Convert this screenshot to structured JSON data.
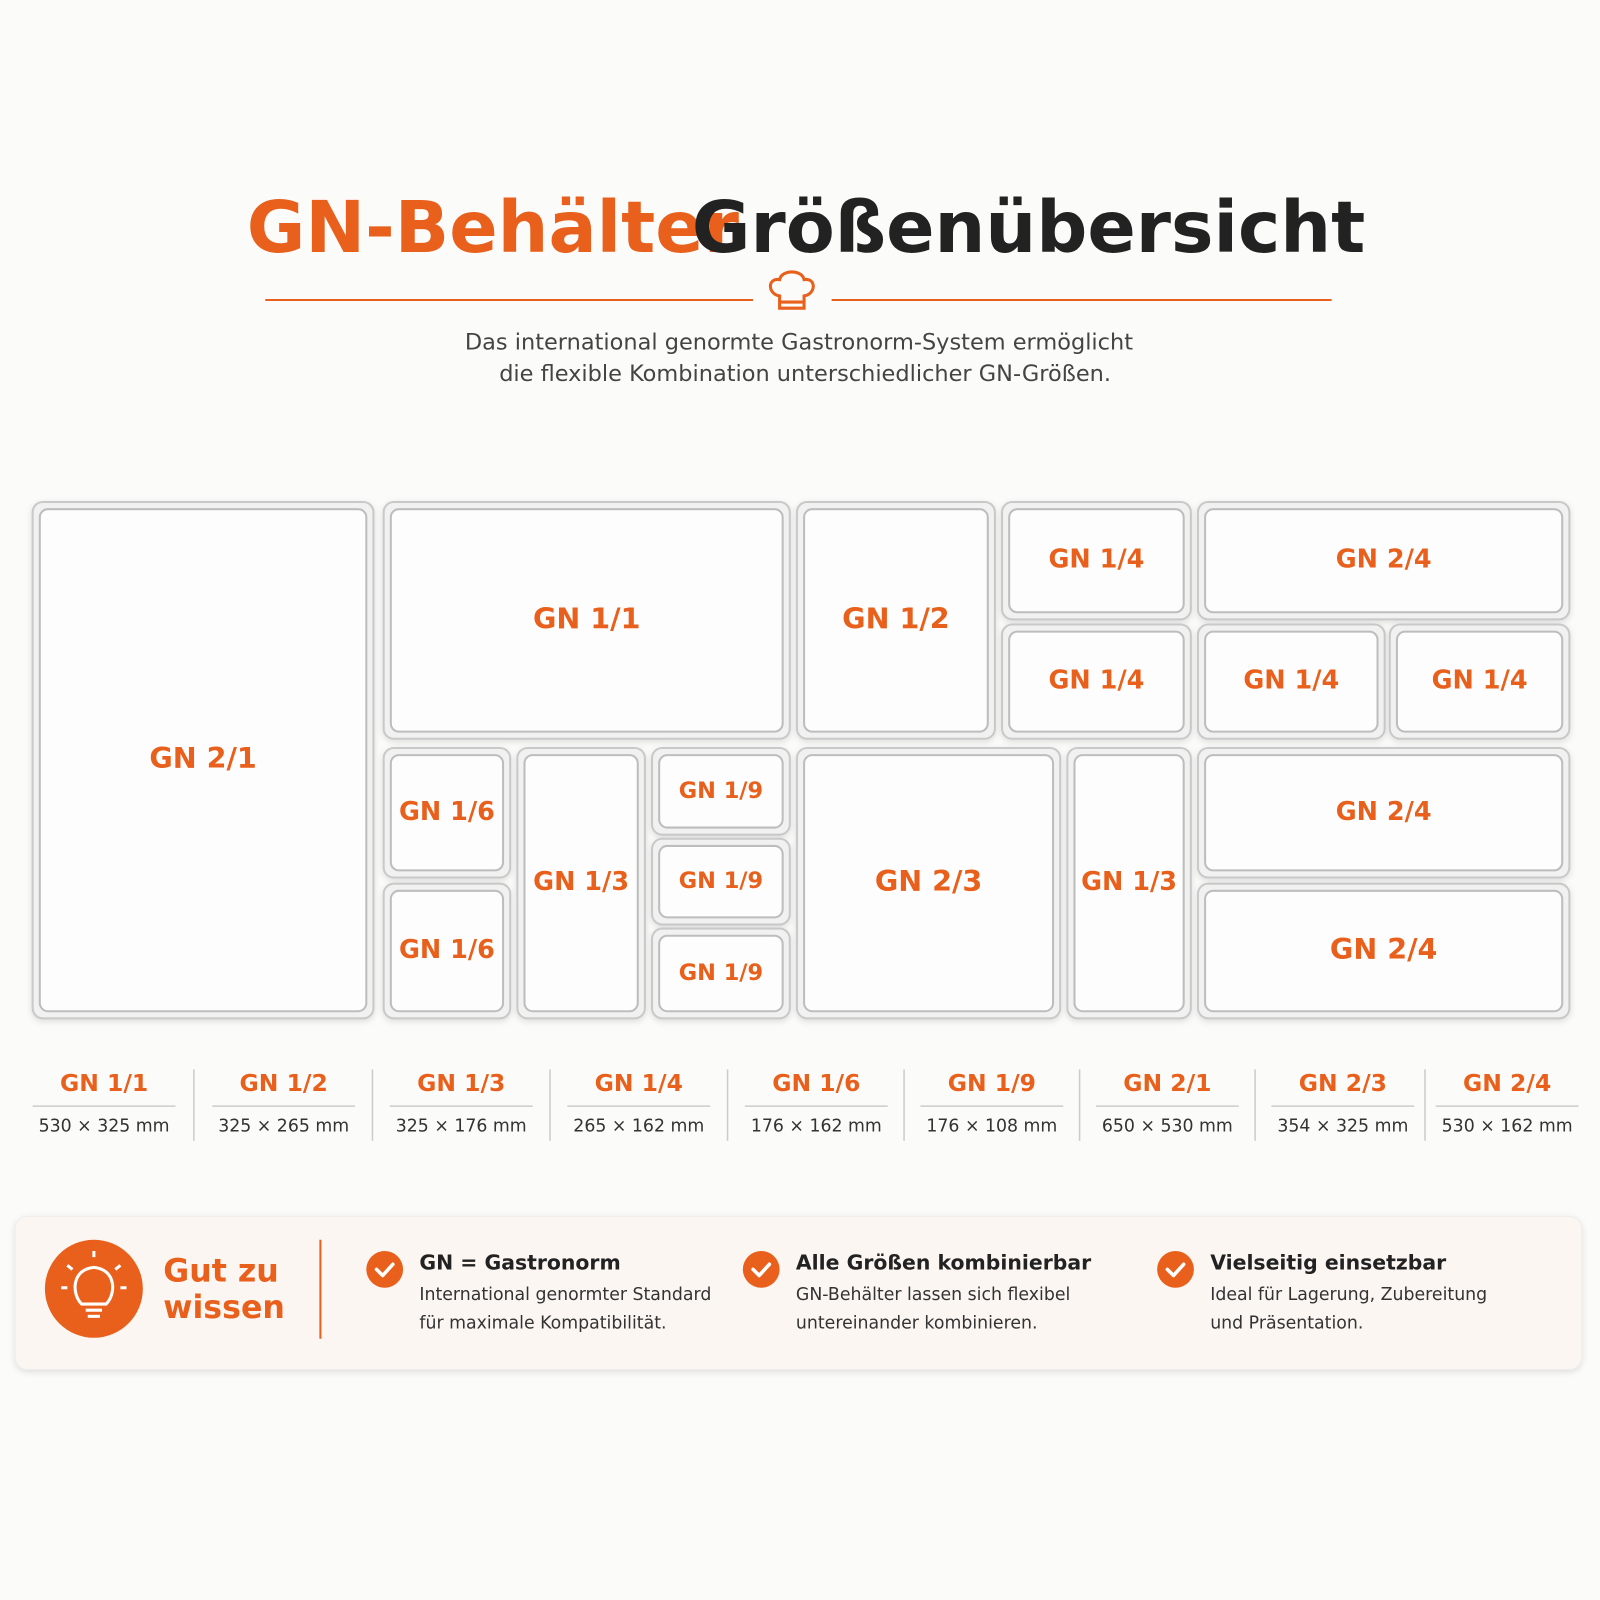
{
  "header": {
    "title_orange": "GN-Behälter",
    "title_dark": "Größenübersicht",
    "subtitle": [
      "Das international genormte Gastronorm-System ermöglicht",
      "die flexible Kombination unterschiedlicher GN-Größen."
    ]
  },
  "containers": [
    "GN 2/1",
    "GN 1/1",
    "GN 1/2",
    "GN 1/4",
    "GN 2/4",
    "GN 1/4",
    "GN 1/4",
    "GN 1/4",
    "GN 1/6",
    "GN 1/6",
    "GN 1/3",
    "GN 1/9",
    "GN 1/9",
    "GN 1/9",
    "GN 2/3",
    "GN 1/3",
    "GN 2/4",
    "GN 2/4"
  ],
  "sizes": [
    {
      "name": "GN 1/1",
      "dims": "530 × 325 mm"
    },
    {
      "name": "GN 1/2",
      "dims": "325 × 265 mm"
    },
    {
      "name": "GN 1/3",
      "dims": "325 × 176 mm"
    },
    {
      "name": "GN 1/4",
      "dims": "265 × 162 mm"
    },
    {
      "name": "GN 1/6",
      "dims": "176 × 162 mm"
    },
    {
      "name": "GN 1/9",
      "dims": "176 × 108 mm"
    },
    {
      "name": "GN 2/1",
      "dims": "650 × 530 mm"
    },
    {
      "name": "GN 2/3",
      "dims": "354 × 325 mm"
    },
    {
      "name": "GN 2/4",
      "dims": "530 × 162 mm"
    }
  ],
  "info": {
    "title": [
      "Gut zu",
      "wissen"
    ],
    "items": [
      {
        "title": "GN = Gastronorm",
        "text": [
          "International genormter Standard",
          "für maximale Kompatibilität."
        ]
      },
      {
        "title": "Alle Größen kombinierbar",
        "text": [
          "GN-Behälter lassen sich flexibel",
          "untereinander kombinieren."
        ]
      },
      {
        "title": "Vielseitig einsetzbar",
        "text": [
          "Ideal für Lagerung, Zubereitung",
          "und Präsentation."
        ]
      }
    ]
  }
}
